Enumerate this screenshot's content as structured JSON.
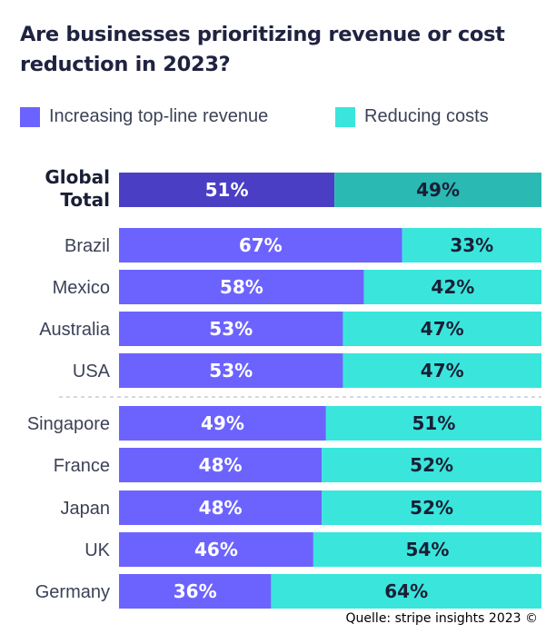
{
  "title": "Are businesses prioritizing revenue or cost reduction in 2023?",
  "source": "Quelle: stripe insights 2023 ©",
  "colors": {
    "revenue": "#6c63ff",
    "costs": "#3ae6dc",
    "revenue_total": "#4a3fc4",
    "costs_total": "#2ab9b3",
    "separator": "#c9ccd6"
  },
  "chart_data": {
    "type": "bar",
    "orientation": "horizontal",
    "stacked": true,
    "title": "Are businesses prioritizing revenue or cost reduction in 2023?",
    "categories": [
      "Global Total",
      "Brazil",
      "Mexico",
      "Australia",
      "USA",
      "Singapore",
      "France",
      "Japan",
      "UK",
      "Germany"
    ],
    "series": [
      {
        "name": "Increasing top-line revenue",
        "values": [
          51,
          67,
          58,
          53,
          53,
          49,
          48,
          48,
          46,
          36
        ]
      },
      {
        "name": "Reducing costs",
        "values": [
          49,
          33,
          42,
          47,
          47,
          51,
          52,
          52,
          54,
          64
        ]
      }
    ],
    "value_suffix": "%",
    "xlim": [
      0,
      100
    ],
    "grid": false,
    "legend": "top-left",
    "separator_after_category": "USA"
  }
}
